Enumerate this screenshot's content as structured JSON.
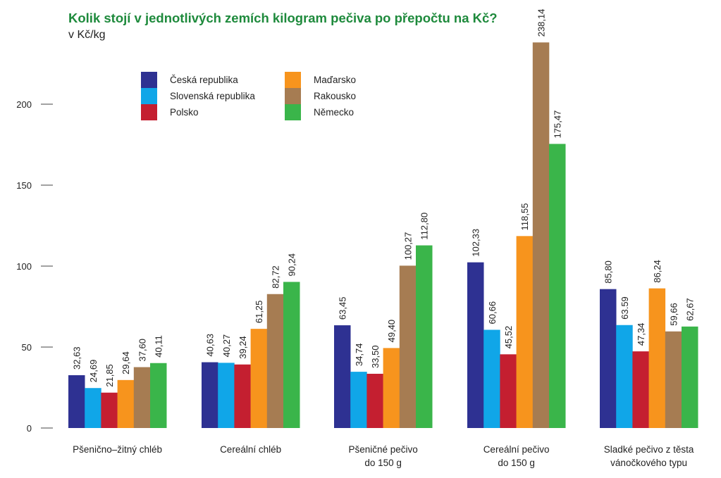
{
  "chart_data": {
    "type": "bar",
    "title": "Kolik stojí v jednotlivých zemích kilogram pečiva po přepočtu na Kč?",
    "subtitle": "v Kč/kg",
    "xlabel": "",
    "ylabel": "",
    "ylim": [
      0,
      240
    ],
    "yticks": [
      0,
      50,
      100,
      150,
      200
    ],
    "legend_position": "top-left",
    "grid": false,
    "categories": [
      [
        "Pšeničnо–žitný chléb"
      ],
      [
        "Cereální chléb"
      ],
      [
        "Pšeničné pečivo",
        "do 150 g"
      ],
      [
        "Cereální pečivo",
        "do 150 g"
      ],
      [
        "Sladké pečivo z těsta",
        "vánočkového typu"
      ]
    ],
    "series": [
      {
        "name": "Česká republika",
        "color": "#2e3192",
        "values": [
          32.63,
          40.63,
          63.45,
          102.33,
          85.8
        ],
        "labels": [
          "32,63",
          "40,63",
          "63,45",
          "102,33",
          "85,80"
        ]
      },
      {
        "name": "Slovenská republika",
        "color": "#10a6e8",
        "values": [
          24.69,
          40.27,
          34.74,
          60.66,
          63.59
        ],
        "labels": [
          "24,69",
          "40,27",
          "34,74",
          "60,66",
          "63.59"
        ]
      },
      {
        "name": "Polsko",
        "color": "#c41f30",
        "values": [
          21.85,
          39.24,
          33.5,
          45.52,
          47.34
        ],
        "labels": [
          "21,85",
          "39,24",
          "33,50",
          "45,52",
          "47,34"
        ]
      },
      {
        "name": "Maďarsko",
        "color": "#f7941d",
        "values": [
          29.64,
          61.25,
          49.4,
          118.55,
          86.24
        ],
        "labels": [
          "29,64",
          "61,25",
          "49,40",
          "118,55",
          "86,24"
        ]
      },
      {
        "name": "Rakousko",
        "color": "#a67c52",
        "values": [
          37.6,
          82.72,
          100.27,
          238.14,
          59.66
        ],
        "labels": [
          "37,60",
          "82,72",
          "100,27",
          "238,14",
          "59,66"
        ]
      },
      {
        "name": "Německo",
        "color": "#3ab54a",
        "values": [
          40.11,
          90.24,
          112.8,
          175.47,
          62.67
        ],
        "labels": [
          "40,11",
          "90,24",
          "112,80",
          "175,47",
          "62,67"
        ]
      }
    ]
  }
}
